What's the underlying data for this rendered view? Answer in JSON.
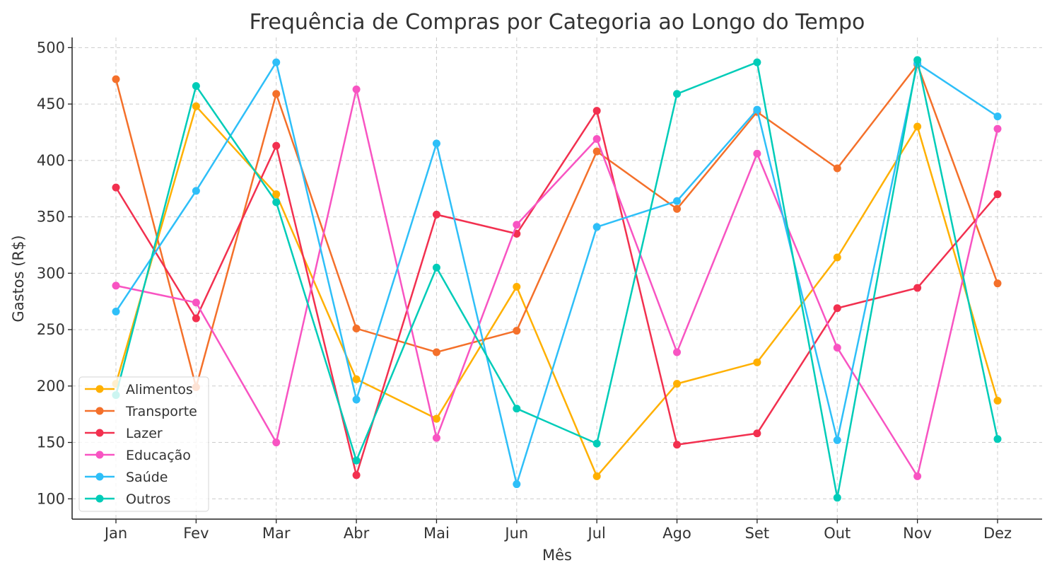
{
  "chart_data": {
    "type": "line",
    "title": "Frequência de Compras por Categoria ao Longo do Tempo",
    "xlabel": "Mês",
    "ylabel": "Gastos (R$)",
    "categories": [
      "Jan",
      "Fev",
      "Mar",
      "Abr",
      "Mai",
      "Jun",
      "Jul",
      "Ago",
      "Set",
      "Out",
      "Nov",
      "Dez"
    ],
    "yticks": [
      100,
      150,
      200,
      250,
      300,
      350,
      400,
      450,
      500
    ],
    "ylim": [
      82,
      509
    ],
    "grid": true,
    "legend_position": "bottom-left",
    "series": [
      {
        "name": "Alimentos",
        "color": "#FFB000",
        "values": [
          202,
          448,
          370,
          206,
          171,
          288,
          120,
          202,
          221,
          314,
          430,
          187
        ]
      },
      {
        "name": "Transporte",
        "color": "#F4702A",
        "values": [
          472,
          199,
          459,
          251,
          230,
          249,
          408,
          357,
          443,
          393,
          485,
          291
        ]
      },
      {
        "name": "Lazer",
        "color": "#F2304F",
        "values": [
          376,
          260,
          413,
          121,
          352,
          335,
          444,
          148,
          158,
          269,
          287,
          370
        ]
      },
      {
        "name": "Educação",
        "color": "#F854C2",
        "values": [
          289,
          274,
          150,
          463,
          154,
          343,
          419,
          230,
          406,
          234,
          120,
          428
        ]
      },
      {
        "name": "Saúde",
        "color": "#2EBFF8",
        "values": [
          266,
          373,
          487,
          188,
          415,
          113,
          341,
          364,
          445,
          152,
          486,
          439
        ]
      },
      {
        "name": "Outros",
        "color": "#00CCB8",
        "values": [
          192,
          466,
          363,
          134,
          305,
          180,
          149,
          459,
          487,
          101,
          489,
          153
        ]
      }
    ]
  }
}
